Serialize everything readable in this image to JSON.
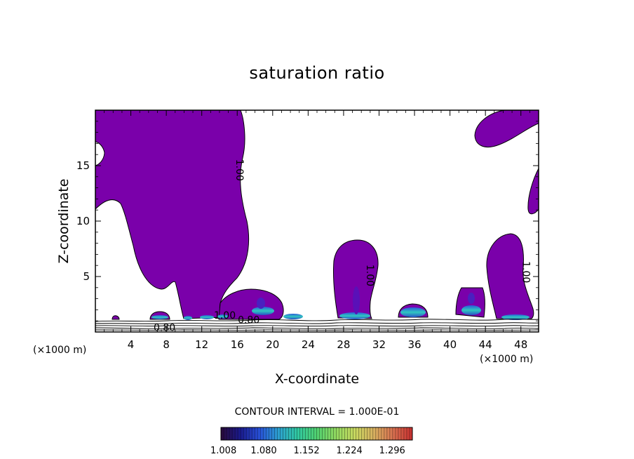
{
  "chart_data": {
    "type": "contour",
    "title": "saturation ratio",
    "xlabel": "X-coordinate",
    "ylabel": "Z-coordinate",
    "x_unit_label": "(×1000 m)",
    "y_unit_label": "(×1000 m)",
    "xlim": [
      0,
      50
    ],
    "ylim": [
      0,
      20
    ],
    "x_ticks": [
      4,
      8,
      12,
      16,
      20,
      24,
      28,
      32,
      36,
      40,
      44,
      48
    ],
    "y_ticks": [
      5,
      10,
      15
    ],
    "contour_labels": [
      {
        "text": "1.00",
        "x": 16.3,
        "y": 14.6
      },
      {
        "text": "1.00",
        "x": 31.0,
        "y": 5.1
      },
      {
        "text": "1.00",
        "x": 48.6,
        "y": 5.4
      },
      {
        "text": "1.00",
        "x": 14.6,
        "y": 1.2
      },
      {
        "text": "0.80",
        "x": 17.3,
        "y": 0.8
      },
      {
        "text": "0.80",
        "x": 7.8,
        "y": 0.1
      }
    ],
    "contour_interval_text": "CONTOUR INTERVAL = 1.000E-01",
    "colorbar": {
      "min": 1.008,
      "max": 1.33,
      "labels": [
        "1.008",
        "1.080",
        "1.152",
        "1.224",
        "1.296"
      ],
      "colors": [
        "#2a0a3a",
        "#1a1a8c",
        "#2850d8",
        "#2ca0d0",
        "#30c8a0",
        "#50d070",
        "#90d860",
        "#c8d860",
        "#d8b060",
        "#d87050",
        "#c83030"
      ]
    },
    "fill_color": "#7a00aa",
    "grid": false
  }
}
